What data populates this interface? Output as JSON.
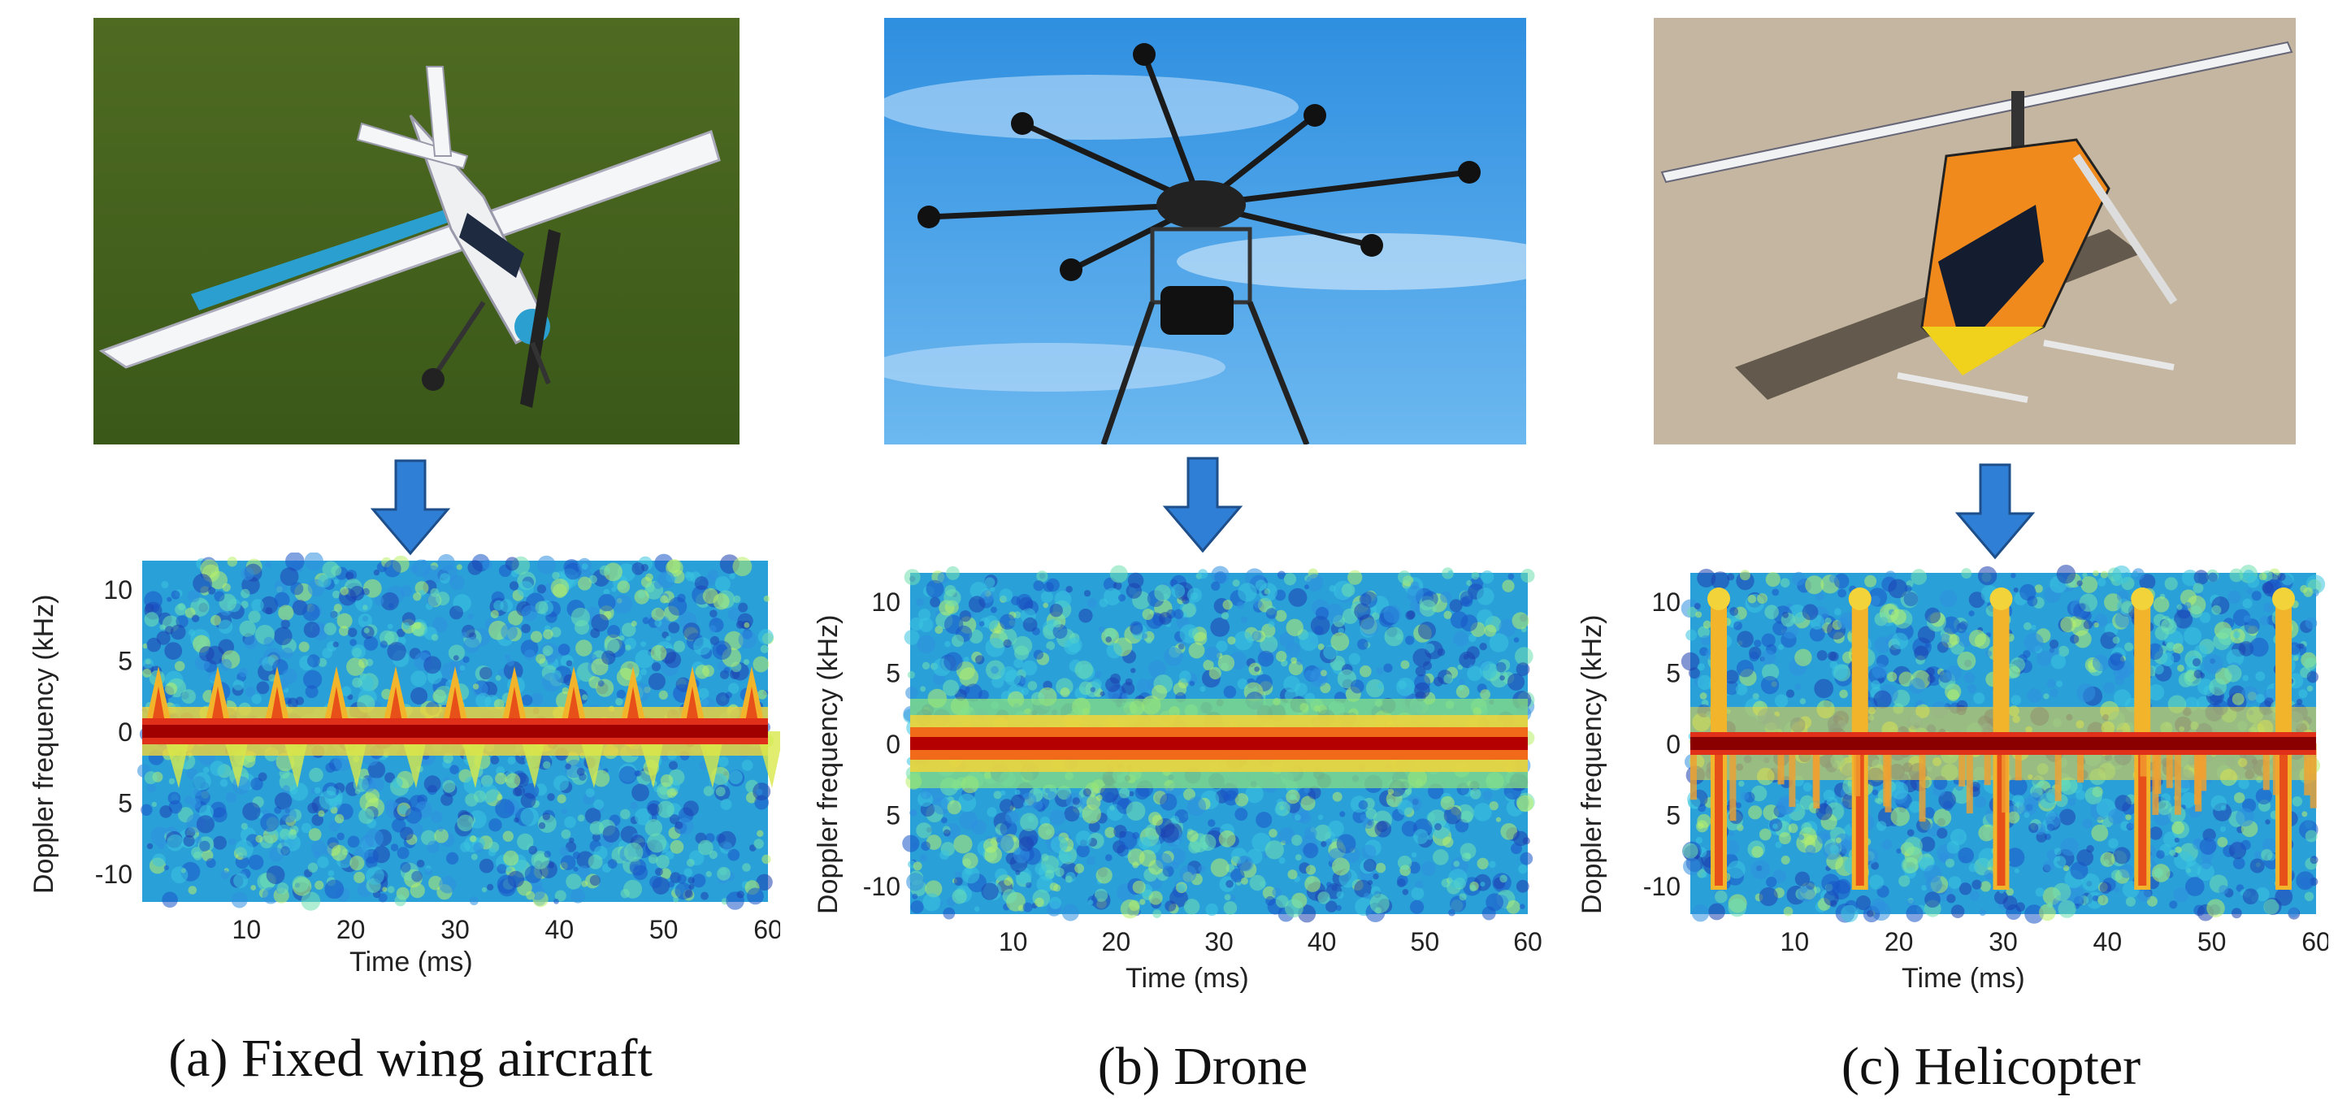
{
  "colors": {
    "arrow": "#2f7fd6",
    "arrow_stroke": "#1e4f8a",
    "spectrum_bg": "#2aa0d8",
    "band": "#b40000"
  },
  "panels": [
    {
      "id": "a",
      "caption": "(a) Fixed wing aircraft",
      "photo_icon": "fixed-wing-aircraft-photo",
      "spectrogram": {
        "ylabel": "Doppler frequency (kHz)",
        "xlabel": "Time (ms)",
        "x_ticks": [
          "10",
          "20",
          "30",
          "40",
          "50",
          "60"
        ],
        "y_ticks": [
          "10",
          "5",
          "0",
          "5",
          "-10"
        ],
        "pattern": "fixed-wing"
      }
    },
    {
      "id": "b",
      "caption": "(b) Drone",
      "photo_icon": "drone-photo",
      "spectrogram": {
        "ylabel": "Doppler frequency (kHz)",
        "xlabel": "Time (ms)",
        "x_ticks": [
          "10",
          "20",
          "30",
          "40",
          "50",
          "60"
        ],
        "y_ticks": [
          "10",
          "5",
          "0",
          "5",
          "-10"
        ],
        "pattern": "drone"
      }
    },
    {
      "id": "c",
      "caption": "(c) Helicopter",
      "photo_icon": "helicopter-photo",
      "spectrogram": {
        "ylabel": "Doppler frequency (kHz)",
        "xlabel": "Time (ms)",
        "x_ticks": [
          "10",
          "20",
          "30",
          "40",
          "50",
          "60"
        ],
        "y_ticks": [
          "10",
          "5",
          "0",
          "5",
          "-10"
        ],
        "pattern": "helicopter"
      }
    }
  ]
}
